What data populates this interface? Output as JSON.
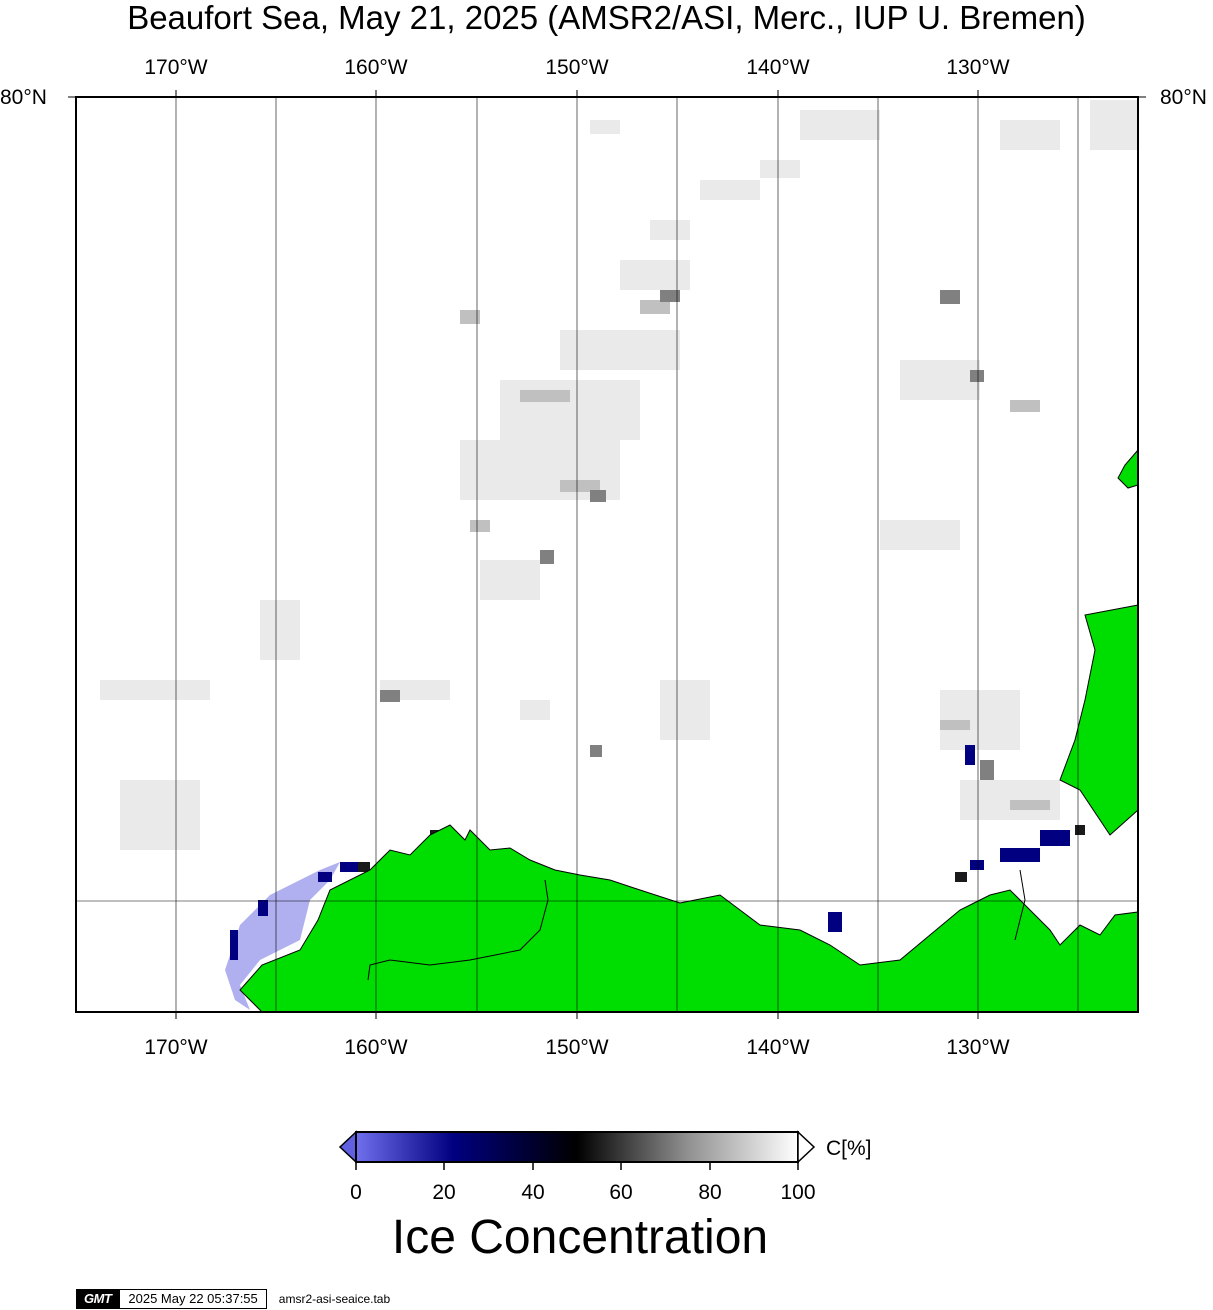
{
  "title": "Beaufort Sea, May 21, 2025 (AMSR2/ASI, Merc., IUP U. Bremen)",
  "map": {
    "lon_ticks": [
      "170°W",
      "160°W",
      "150°W",
      "140°W",
      "130°W"
    ],
    "lon_values": [
      -170,
      -160,
      -150,
      -140,
      -130
    ],
    "lat_ticks": [
      "80°N"
    ],
    "land_color": "#00dd00",
    "grid_color": "#000000"
  },
  "colorbar": {
    "unit": "C[%]",
    "ticks": [
      "0",
      "20",
      "40",
      "60",
      "80",
      "100"
    ],
    "label": "Ice Concentration",
    "colors": [
      "#7070ee",
      "#000080",
      "#000000",
      "#808080",
      "#ffffff"
    ]
  },
  "footer": {
    "logo": "GMT",
    "timestamp": "2025 May 22 05:37:55",
    "file": "amsr2-asi-seaice.tab"
  }
}
